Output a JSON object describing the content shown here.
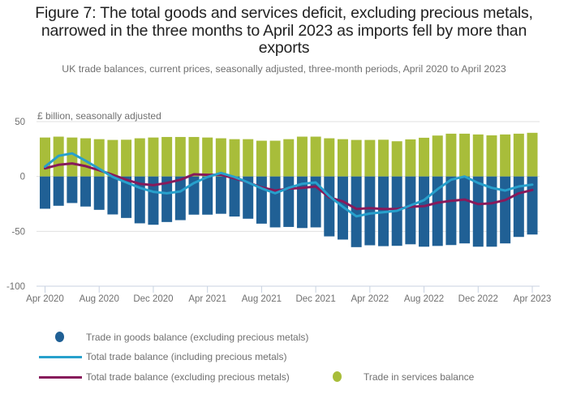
{
  "title": "Figure 7: The total goods and services deficit, excluding precious metals, narrowed in the three months to April 2023 as imports fell by more than exports",
  "subtitle": "UK trade balances, current prices, seasonally adjusted, three-month periods, April 2020 to April 2023",
  "colors": {
    "goods": "#206095",
    "services": "#a8bd3a",
    "total_incl": "#27a0cc",
    "total_excl": "#871a5b",
    "grid": "#e0e0e0",
    "axis": "#c8d2e1",
    "text": "#707070"
  },
  "legend": [
    {
      "label": "Trade in goods balance (excluding precious metals)",
      "symbol": "dot",
      "series": "goods"
    },
    {
      "label": "Total trade balance (including precious metals)",
      "symbol": "line",
      "series": "total_incl"
    },
    {
      "label": "Total trade balance (excluding precious metals)",
      "symbol": "line",
      "series": "total_excl"
    },
    {
      "label": "Trade in services balance",
      "symbol": "dot",
      "series": "services"
    }
  ],
  "chart_data": {
    "type": "bar",
    "stacked": true,
    "title": "Figure 7: The total goods and services deficit, excluding precious metals, narrowed in the three months to April 2023 as imports fell by more than exports",
    "ylabel": "£ billion, seasonally adjusted",
    "xlabel": "",
    "ylim": [
      -100,
      50
    ],
    "yticks": [
      50,
      0,
      -50,
      -100
    ],
    "grid": true,
    "legend_position": "bottom",
    "categories": [
      "Apr 2020",
      "May 2020",
      "Jun 2020",
      "Jul 2020",
      "Aug 2020",
      "Sep 2020",
      "Oct 2020",
      "Nov 2020",
      "Dec 2020",
      "Jan 2021",
      "Feb 2021",
      "Mar 2021",
      "Apr 2021",
      "May 2021",
      "Jun 2021",
      "Jul 2021",
      "Aug 2021",
      "Sep 2021",
      "Oct 2021",
      "Nov 2021",
      "Dec 2021",
      "Jan 2022",
      "Feb 2022",
      "Mar 2022",
      "Apr 2022",
      "May 2022",
      "Jun 2022",
      "Jul 2022",
      "Aug 2022",
      "Sep 2022",
      "Oct 2022",
      "Nov 2022",
      "Dec 2022",
      "Jan 2023",
      "Feb 2023",
      "Mar 2023",
      "Apr 2023"
    ],
    "xtick_labels": [
      "Apr 2020",
      "Aug 2020",
      "Dec 2020",
      "Apr 2021",
      "Aug 2021",
      "Dec 2021",
      "Apr 2022",
      "Aug 2022",
      "Dec 2022",
      "Apr 2023"
    ],
    "series": [
      {
        "name": "Trade in goods balance (excluding precious metals)",
        "key": "goods",
        "type": "bar",
        "values": [
          -29.4,
          -26.7,
          -24.2,
          -27.4,
          -30.4,
          -34.6,
          -37.8,
          -42.7,
          -44.0,
          -41.5,
          -39.8,
          -34.8,
          -34.8,
          -34.0,
          -36.5,
          -38.5,
          -43.0,
          -46.4,
          -46.0,
          -47.0,
          -46.4,
          -54.6,
          -57.5,
          -64.4,
          -62.7,
          -63.5,
          -63.2,
          -61.8,
          -64.0,
          -63.3,
          -62.5,
          -61.0,
          -64.0,
          -64.0,
          -61.0,
          -55.1,
          -52.9
        ]
      },
      {
        "name": "Trade in services balance",
        "key": "services",
        "type": "bar",
        "values": [
          35.5,
          36.3,
          35.5,
          34.8,
          34.0,
          33.3,
          33.5,
          34.8,
          35.5,
          36.0,
          36.0,
          36.0,
          35.5,
          34.8,
          34.0,
          34.0,
          32.6,
          32.6,
          34.0,
          36.3,
          36.3,
          34.8,
          34.0,
          33.3,
          33.3,
          33.5,
          32.1,
          33.8,
          35.3,
          37.3,
          39.0,
          39.0,
          38.3,
          37.5,
          38.3,
          39.0,
          39.8
        ]
      },
      {
        "name": "Total trade balance (including precious metals)",
        "key": "total_incl",
        "type": "line",
        "values": [
          8.9,
          18.8,
          21.0,
          14.3,
          7.0,
          -0.4,
          -5.4,
          -10.4,
          -14.0,
          -15.3,
          -13.6,
          -5.9,
          -0.5,
          3.2,
          -0.5,
          -5.4,
          -10.8,
          -15.3,
          -10.4,
          -6.7,
          -5.4,
          -17.8,
          -27.6,
          -36.3,
          -33.8,
          -32.6,
          -31.3,
          -26.4,
          -21.5,
          -11.6,
          -3.0,
          0.0,
          -5.9,
          -10.4,
          -12.8,
          -9.1,
          -7.4
        ]
      },
      {
        "name": "Total trade balance (excluding precious metals)",
        "key": "total_excl",
        "type": "line",
        "values": [
          7.4,
          10.6,
          11.9,
          9.4,
          5.7,
          1.5,
          -3.0,
          -6.7,
          -7.9,
          -5.9,
          -3.0,
          2.0,
          1.5,
          1.5,
          -1.7,
          -5.4,
          -9.9,
          -12.8,
          -11.1,
          -10.4,
          -9.1,
          -19.0,
          -22.7,
          -29.6,
          -28.9,
          -29.6,
          -29.6,
          -27.6,
          -27.1,
          -23.9,
          -22.2,
          -21.0,
          -25.2,
          -24.4,
          -21.5,
          -15.3,
          -12.3
        ]
      }
    ]
  }
}
